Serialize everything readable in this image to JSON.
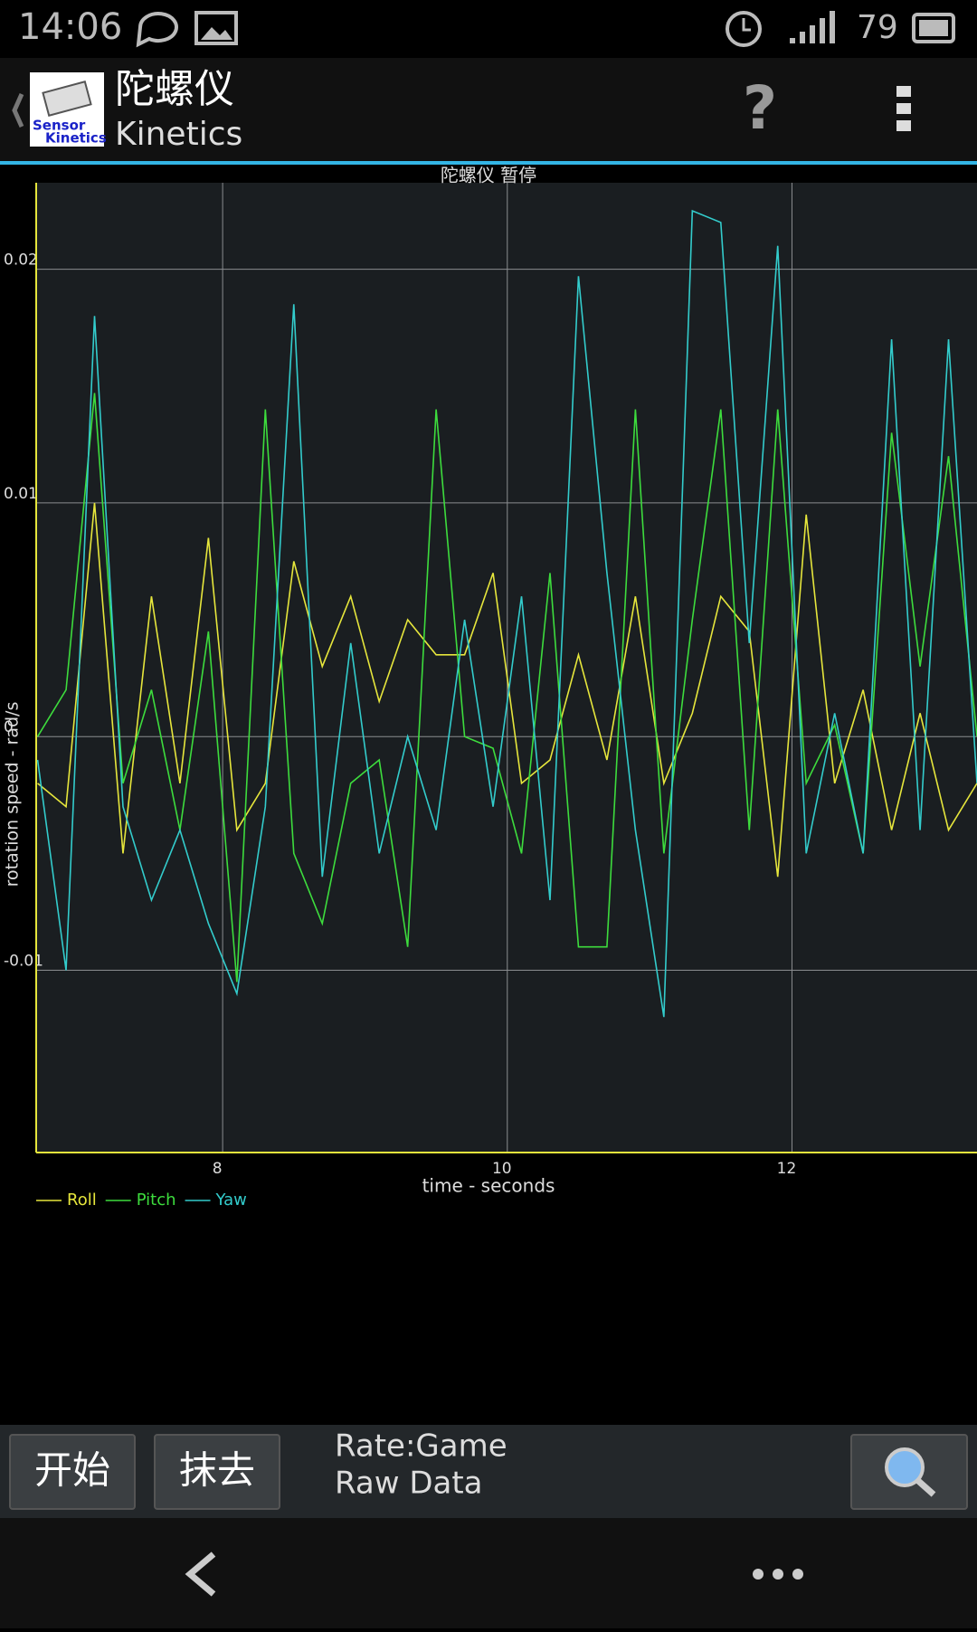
{
  "status_bar": {
    "time": "14:06",
    "battery": "79"
  },
  "action_bar": {
    "title": "陀螺仪",
    "subtitle": "Kinetics",
    "logo": [
      "Sensor",
      "Kinetics"
    ],
    "help": "?"
  },
  "chart_data": {
    "type": "line",
    "title": "陀螺仪 暂停",
    "x_label": "time - seconds",
    "y_label": "rotation speed - rad/s",
    "x": [
      6.7,
      6.9,
      7.1,
      7.3,
      7.5,
      7.7,
      7.9,
      8.1,
      8.3,
      8.5,
      8.7,
      8.9,
      9.1,
      9.3,
      9.5,
      9.7,
      9.9,
      10.1,
      10.3,
      10.5,
      10.7,
      10.9,
      11.1,
      11.3,
      11.5,
      11.7,
      11.9,
      12.1,
      12.3,
      12.5,
      12.7,
      12.9,
      13.1,
      13.3
    ],
    "series": [
      {
        "name": "Roll",
        "color": "#e6e63c",
        "values": [
          -0.002,
          -0.003,
          0.01,
          -0.005,
          0.006,
          -0.002,
          0.0085,
          -0.004,
          -0.002,
          0.0075,
          0.003,
          0.006,
          0.0015,
          0.005,
          0.0035,
          0.0035,
          0.007,
          -0.002,
          -0.001,
          0.0035,
          -0.001,
          0.006,
          -0.002,
          0.001,
          0.006,
          0.0045,
          -0.006,
          0.0095,
          -0.002,
          0.002,
          -0.004,
          0.001,
          -0.004,
          -0.002
        ]
      },
      {
        "name": "Pitch",
        "color": "#3ddc3d",
        "values": [
          0.0,
          0.002,
          0.0147,
          -0.002,
          0.002,
          -0.004,
          0.0045,
          -0.0105,
          0.014,
          -0.005,
          -0.008,
          -0.002,
          -0.001,
          -0.009,
          0.014,
          0.0,
          -0.0005,
          -0.005,
          0.007,
          -0.009,
          -0.009,
          0.014,
          -0.005,
          0.005,
          0.014,
          -0.004,
          0.014,
          -0.002,
          0.0005,
          -0.005,
          0.013,
          0.003,
          0.012,
          0.0
        ]
      },
      {
        "name": "Yaw",
        "color": "#33cccc",
        "values": [
          -0.001,
          -0.01,
          0.018,
          -0.003,
          -0.007,
          -0.004,
          -0.008,
          -0.011,
          -0.003,
          0.0185,
          -0.006,
          0.004,
          -0.005,
          0.0,
          -0.004,
          0.005,
          -0.003,
          0.006,
          -0.007,
          0.0197,
          0.007,
          -0.004,
          -0.012,
          0.0225,
          0.022,
          0.004,
          0.021,
          -0.005,
          0.001,
          -0.005,
          0.017,
          -0.004,
          0.017,
          -0.002
        ]
      }
    ],
    "xlim": [
      6.69,
      13.3
    ],
    "xticks": [
      8,
      10,
      12
    ],
    "ylim": [
      -0.0178,
      0.0237
    ],
    "yticks": [
      -0.01,
      0,
      0.01,
      0.02
    ],
    "grid": true,
    "legend": "bottom-left"
  },
  "controls": {
    "start": "开始",
    "erase": "抹去",
    "rate": "Rate:Game",
    "mode": "Raw Data"
  }
}
